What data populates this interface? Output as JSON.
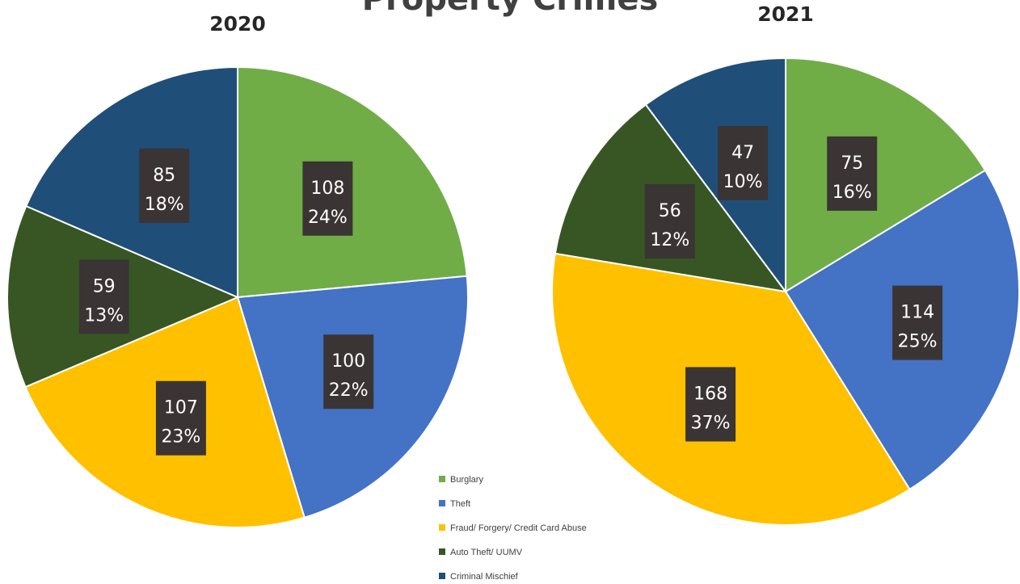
{
  "title": "Property Crimes",
  "chart_data": {
    "type": "pie",
    "categories": [
      "Burglary",
      "Theft",
      "Fraud/ Forgery/ Credit Card Abuse",
      "Auto Theft/ UUMV",
      "Criminal Mischief"
    ],
    "colors": [
      "#70ad47",
      "#4472c4",
      "#ffc000",
      "#375623",
      "#1f4e79"
    ],
    "legend_position": "bottom-center",
    "charts": [
      {
        "title": "2020",
        "values": [
          108,
          100,
          107,
          59,
          85
        ],
        "percent_labels": [
          "24%",
          "22%",
          "23%",
          "13%",
          "18%"
        ]
      },
      {
        "title": "2021",
        "values": [
          75,
          114,
          168,
          56,
          47
        ],
        "percent_labels": [
          "16%",
          "25%",
          "37%",
          "12%",
          "10%"
        ]
      }
    ]
  }
}
